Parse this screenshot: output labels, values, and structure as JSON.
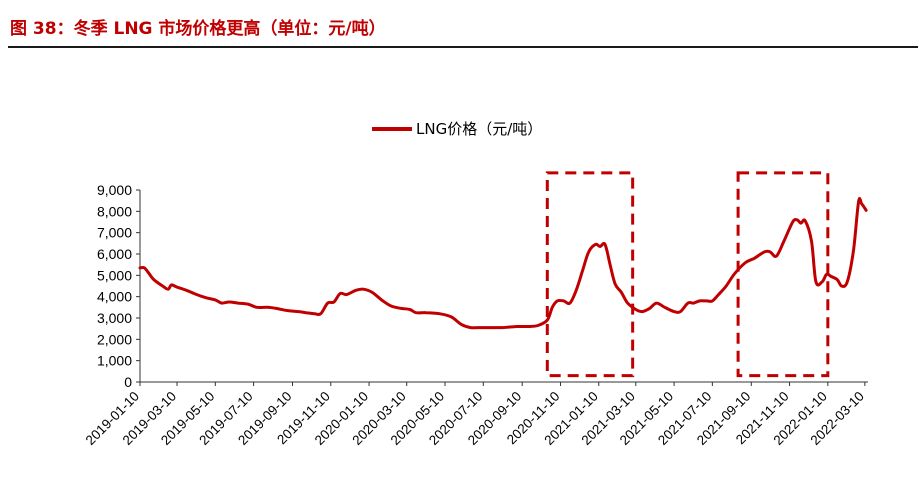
{
  "figure": {
    "title": "图 38：冬季 LNG 市场价格更高（单位：元/吨）"
  },
  "colors": {
    "accent": "#c00000",
    "axis": "#333333"
  },
  "chart_data": {
    "type": "line",
    "legend_placement": "top-center",
    "grid": false,
    "ylim": [
      0,
      9000
    ],
    "y_ticks": [
      "0",
      "1,000",
      "2,000",
      "3,000",
      "4,000",
      "5,000",
      "6,000",
      "7,000",
      "8,000",
      "9,000"
    ],
    "x_tick_labels": [
      "2019-01-10",
      "2019-03-10",
      "2019-05-10",
      "2019-07-10",
      "2019-09-10",
      "2019-11-10",
      "2020-01-10",
      "2020-03-10",
      "2020-05-10",
      "2020-07-10",
      "2020-09-10",
      "2020-11-10",
      "2021-01-10",
      "2021-03-10",
      "2021-05-10",
      "2021-07-10",
      "2021-09-10",
      "2021-11-10",
      "2022-01-10",
      "2022-03-10"
    ],
    "xlim": [
      "2019-01-10",
      "2022-03-15"
    ],
    "series": [
      {
        "name": "LNG价格（元/吨）",
        "color": "#c00000",
        "points": [
          [
            "2019-01-10",
            5350
          ],
          [
            "2019-01-17",
            5350
          ],
          [
            "2019-01-24",
            5100
          ],
          [
            "2019-02-01",
            4800
          ],
          [
            "2019-02-15",
            4500
          ],
          [
            "2019-02-24",
            4350
          ],
          [
            "2019-03-01",
            4550
          ],
          [
            "2019-03-10",
            4450
          ],
          [
            "2019-03-25",
            4300
          ],
          [
            "2019-04-10",
            4100
          ],
          [
            "2019-04-25",
            3950
          ],
          [
            "2019-05-10",
            3850
          ],
          [
            "2019-05-20",
            3700
          ],
          [
            "2019-06-01",
            3750
          ],
          [
            "2019-06-15",
            3700
          ],
          [
            "2019-07-01",
            3650
          ],
          [
            "2019-07-15",
            3500
          ],
          [
            "2019-08-01",
            3500
          ],
          [
            "2019-08-15",
            3450
          ],
          [
            "2019-09-01",
            3350
          ],
          [
            "2019-09-20",
            3300
          ],
          [
            "2019-10-01",
            3250
          ],
          [
            "2019-10-15",
            3200
          ],
          [
            "2019-10-25",
            3200
          ],
          [
            "2019-11-05",
            3700
          ],
          [
            "2019-11-15",
            3750
          ],
          [
            "2019-11-25",
            4150
          ],
          [
            "2019-12-05",
            4100
          ],
          [
            "2019-12-20",
            4300
          ],
          [
            "2020-01-01",
            4350
          ],
          [
            "2020-01-15",
            4200
          ],
          [
            "2020-02-01",
            3800
          ],
          [
            "2020-02-15",
            3550
          ],
          [
            "2020-03-01",
            3450
          ],
          [
            "2020-03-15",
            3400
          ],
          [
            "2020-03-25",
            3250
          ],
          [
            "2020-04-10",
            3250
          ],
          [
            "2020-05-01",
            3200
          ],
          [
            "2020-05-20",
            3050
          ],
          [
            "2020-06-05",
            2700
          ],
          [
            "2020-06-20",
            2550
          ],
          [
            "2020-07-01",
            2550
          ],
          [
            "2020-07-20",
            2550
          ],
          [
            "2020-08-10",
            2550
          ],
          [
            "2020-09-01",
            2600
          ],
          [
            "2020-09-20",
            2600
          ],
          [
            "2020-10-05",
            2650
          ],
          [
            "2020-10-20",
            2900
          ],
          [
            "2020-10-28",
            3500
          ],
          [
            "2020-11-05",
            3800
          ],
          [
            "2020-11-15",
            3800
          ],
          [
            "2020-11-25",
            3700
          ],
          [
            "2020-12-05",
            4300
          ],
          [
            "2020-12-15",
            5200
          ],
          [
            "2020-12-25",
            6100
          ],
          [
            "2021-01-05",
            6450
          ],
          [
            "2021-01-12",
            6350
          ],
          [
            "2021-01-20",
            6450
          ],
          [
            "2021-01-28",
            5500
          ],
          [
            "2021-02-05",
            4600
          ],
          [
            "2021-02-15",
            4200
          ],
          [
            "2021-02-25",
            3700
          ],
          [
            "2021-03-10",
            3400
          ],
          [
            "2021-03-20",
            3300
          ],
          [
            "2021-04-01",
            3450
          ],
          [
            "2021-04-12",
            3700
          ],
          [
            "2021-04-25",
            3500
          ],
          [
            "2021-05-10",
            3300
          ],
          [
            "2021-05-20",
            3300
          ],
          [
            "2021-06-01",
            3700
          ],
          [
            "2021-06-10",
            3700
          ],
          [
            "2021-06-20",
            3800
          ],
          [
            "2021-07-01",
            3800
          ],
          [
            "2021-07-10",
            3800
          ],
          [
            "2021-07-20",
            4100
          ],
          [
            "2021-08-01",
            4500
          ],
          [
            "2021-08-15",
            5100
          ],
          [
            "2021-09-01",
            5600
          ],
          [
            "2021-09-15",
            5800
          ],
          [
            "2021-10-01",
            6100
          ],
          [
            "2021-10-10",
            6100
          ],
          [
            "2021-10-20",
            5900
          ],
          [
            "2021-11-01",
            6600
          ],
          [
            "2021-11-15",
            7500
          ],
          [
            "2021-11-22",
            7600
          ],
          [
            "2021-11-28",
            7450
          ],
          [
            "2021-12-05",
            7550
          ],
          [
            "2021-12-15",
            6600
          ],
          [
            "2021-12-22",
            4700
          ],
          [
            "2022-01-01",
            4700
          ],
          [
            "2022-01-08",
            5050
          ],
          [
            "2022-01-15",
            4950
          ],
          [
            "2022-01-25",
            4800
          ],
          [
            "2022-02-01",
            4500
          ],
          [
            "2022-02-10",
            4700
          ],
          [
            "2022-02-20",
            6200
          ],
          [
            "2022-02-28",
            8450
          ],
          [
            "2022-03-05",
            8350
          ],
          [
            "2022-03-12",
            8050
          ]
        ]
      }
    ],
    "highlight_boxes": [
      {
        "from": "2020-10-20",
        "to": "2021-03-05",
        "ymin": 300,
        "ymax": 9800
      },
      {
        "from": "2021-08-20",
        "to": "2022-01-10",
        "ymin": 300,
        "ymax": 9800
      }
    ]
  }
}
